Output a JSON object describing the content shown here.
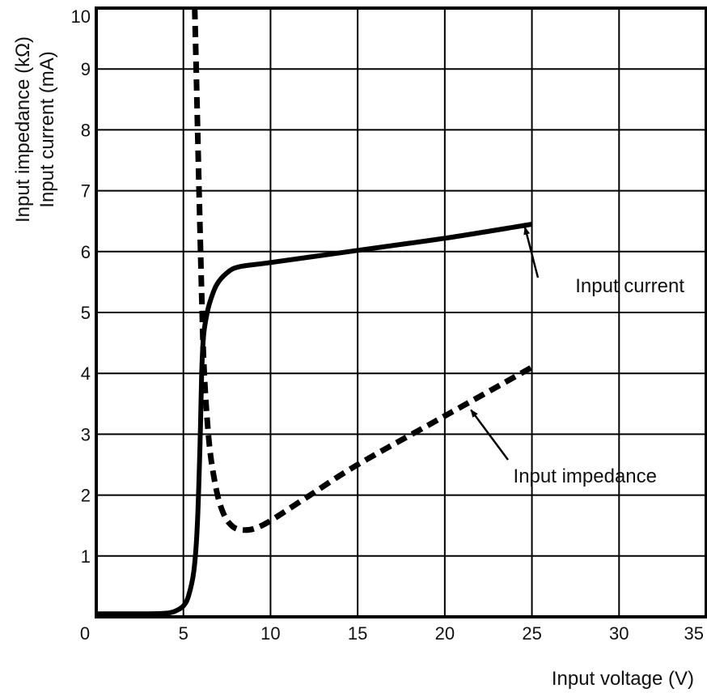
{
  "chart_data": {
    "type": "line",
    "xlabel": "Input voltage (V)",
    "ylabel": [
      "Input impedance (kΩ)",
      "Input current (mA)"
    ],
    "xlim": [
      0,
      35
    ],
    "ylim": [
      0,
      10
    ],
    "x_ticks": [
      "0",
      "5",
      "10",
      "15",
      "20",
      "25",
      "30",
      "35"
    ],
    "y_ticks": [
      "1",
      "2",
      "3",
      "4",
      "5",
      "6",
      "7",
      "8",
      "9",
      "10"
    ],
    "grid": true,
    "series": [
      {
        "style": "solid",
        "color": "#000000",
        "x": [
          0,
          3,
          4,
          4.5,
          5,
          5.3,
          5.6,
          5.8,
          5.95,
          6.05,
          6.15,
          6.3,
          6.5,
          6.9,
          7.5,
          8.2,
          10,
          15,
          20,
          25
        ],
        "y": [
          0.05,
          0.05,
          0.06,
          0.09,
          0.18,
          0.35,
          0.75,
          1.5,
          2.8,
          4.0,
          4.6,
          4.9,
          5.15,
          5.45,
          5.65,
          5.75,
          5.82,
          6.02,
          6.22,
          6.45
        ]
      },
      {
        "style": "dashed",
        "color": "#000000",
        "x": [
          5.65,
          5.75,
          5.85,
          5.95,
          6.05,
          6.15,
          6.3,
          6.5,
          6.75,
          7.1,
          7.6,
          8.3,
          9.5,
          12,
          15,
          20,
          25
        ],
        "y": [
          10,
          8.8,
          7.6,
          6.4,
          5.3,
          4.3,
          3.5,
          2.8,
          2.3,
          1.85,
          1.55,
          1.43,
          1.5,
          1.95,
          2.5,
          3.3,
          4.1
        ]
      }
    ],
    "annotations": [
      {
        "text": "Input current",
        "arrow_to": [
          24.6,
          6.4
        ]
      },
      {
        "text": "Input impedance",
        "arrow_to": [
          21.5,
          3.4
        ]
      }
    ]
  }
}
